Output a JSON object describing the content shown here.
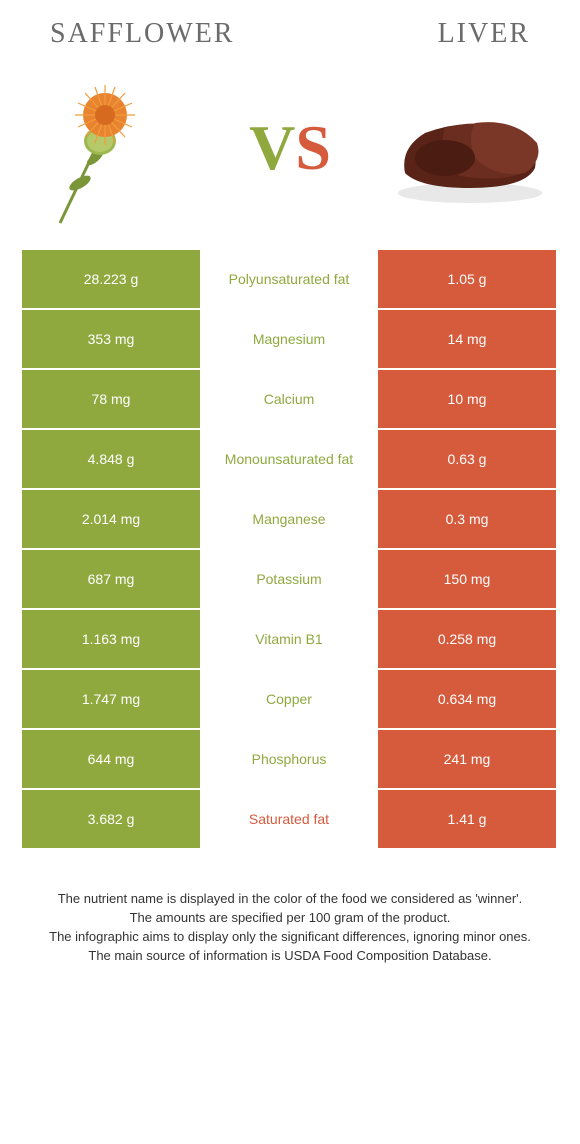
{
  "colors": {
    "left_bg": "#8fa93f",
    "right_bg": "#d65b3d",
    "mid_text_left": "#8fa93f",
    "mid_text_right": "#d65b3d",
    "header_text": "#6b6b6b"
  },
  "header": {
    "left_title": "SAFFLOWER",
    "right_title": "LIVER"
  },
  "vs": {
    "v": "V",
    "s": "S"
  },
  "rows": [
    {
      "left": "28.223 g",
      "mid": "Polyunsaturated fat",
      "right": "1.05 g",
      "winner": "left"
    },
    {
      "left": "353 mg",
      "mid": "Magnesium",
      "right": "14 mg",
      "winner": "left"
    },
    {
      "left": "78 mg",
      "mid": "Calcium",
      "right": "10 mg",
      "winner": "left"
    },
    {
      "left": "4.848 g",
      "mid": "Monounsaturated fat",
      "right": "0.63 g",
      "winner": "left"
    },
    {
      "left": "2.014 mg",
      "mid": "Manganese",
      "right": "0.3 mg",
      "winner": "left"
    },
    {
      "left": "687 mg",
      "mid": "Potassium",
      "right": "150 mg",
      "winner": "left"
    },
    {
      "left": "1.163 mg",
      "mid": "Vitamin B1",
      "right": "0.258 mg",
      "winner": "left"
    },
    {
      "left": "1.747 mg",
      "mid": "Copper",
      "right": "0.634 mg",
      "winner": "left"
    },
    {
      "left": "644 mg",
      "mid": "Phosphorus",
      "right": "241 mg",
      "winner": "left"
    },
    {
      "left": "3.682 g",
      "mid": "Saturated fat",
      "right": "1.41 g",
      "winner": "right"
    }
  ],
  "footer": {
    "line1": "The nutrient name is displayed in the color of the food we considered as 'winner'.",
    "line2": "The amounts are specified per 100 gram of the product.",
    "line3": "The infographic aims to display only the significant differences, ignoring minor ones.",
    "line4": "The main source of information is USDA Food Composition Database."
  }
}
